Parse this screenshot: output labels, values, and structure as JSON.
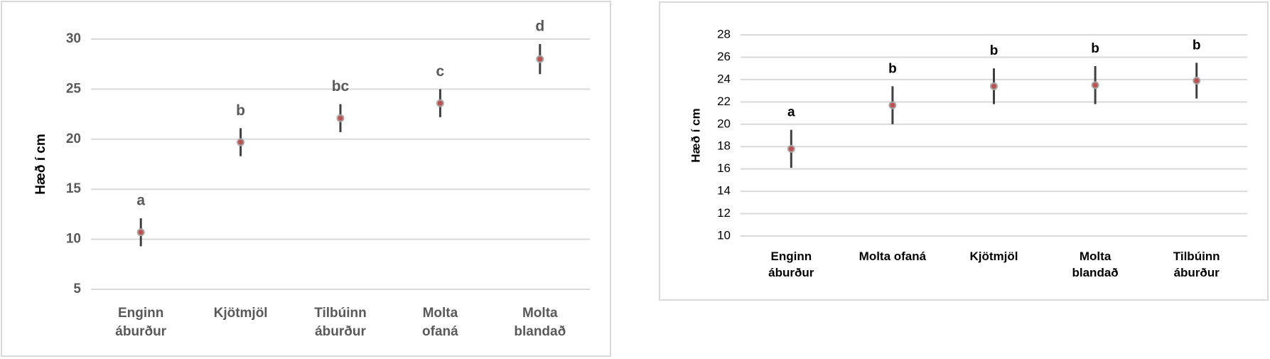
{
  "chart_data": [
    {
      "type": "dot",
      "y_label": "Hæð í cm",
      "categories": [
        "Enginn áburður",
        "Kjötmjöl",
        "Tilbúinn áburður",
        "Molta ofaná",
        "Molta blandað"
      ],
      "values": [
        10.7,
        19.7,
        22.1,
        23.6,
        28.0
      ],
      "errors": [
        1.4,
        1.4,
        1.4,
        1.4,
        1.5
      ],
      "letters": [
        "a",
        "b",
        "bc",
        "c",
        "d"
      ],
      "color": "#c0504d",
      "error_color": "#404040",
      "ylim": [
        5,
        30
      ],
      "yticks": [
        5,
        10,
        15,
        20,
        25,
        30
      ],
      "grid": true
    },
    {
      "type": "dot",
      "y_label": "Hæð í cm",
      "categories": [
        "Enginn áburður",
        "Molta ofaná",
        "Kjötmjöl",
        "Molta blandað",
        "Tilbúinn áburður"
      ],
      "values": [
        17.8,
        21.7,
        23.4,
        23.5,
        23.9
      ],
      "errors": [
        1.7,
        1.7,
        1.6,
        1.7,
        1.6
      ],
      "letters": [
        "a",
        "b",
        "b",
        "b",
        "b"
      ],
      "color": "#c0504d",
      "error_color": "#404040",
      "ylim": [
        10,
        28
      ],
      "yticks": [
        10,
        12,
        14,
        16,
        18,
        20,
        22,
        24,
        26,
        28
      ],
      "grid": true
    }
  ]
}
